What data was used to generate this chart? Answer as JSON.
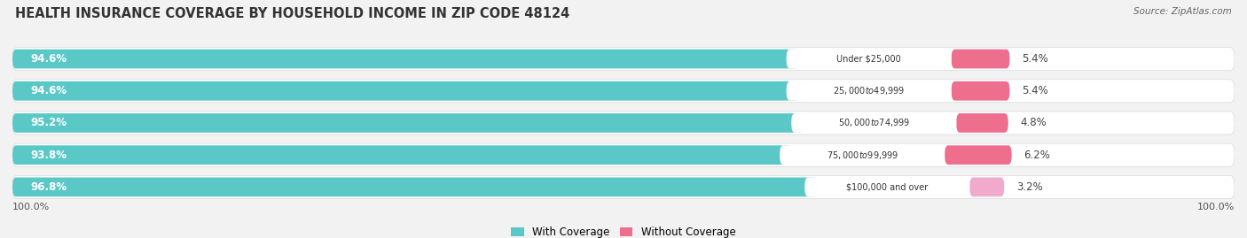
{
  "title": "HEALTH INSURANCE COVERAGE BY HOUSEHOLD INCOME IN ZIP CODE 48124",
  "source": "Source: ZipAtlas.com",
  "categories": [
    "Under $25,000",
    "$25,000 to $49,999",
    "$50,000 to $74,999",
    "$75,000 to $99,999",
    "$100,000 and over"
  ],
  "with_coverage": [
    94.6,
    94.6,
    95.2,
    93.8,
    96.8
  ],
  "without_coverage": [
    5.4,
    5.4,
    4.8,
    6.2,
    3.2
  ],
  "color_with": "#5BC8C8",
  "color_without": "#EE6E8E",
  "color_without_last": "#F0AACC",
  "bg_row": "#EBEBEB",
  "background_color": "#F2F2F2",
  "title_fontsize": 10.5,
  "label_fontsize": 8.5,
  "tick_fontsize": 8,
  "legend_fontsize": 8.5
}
